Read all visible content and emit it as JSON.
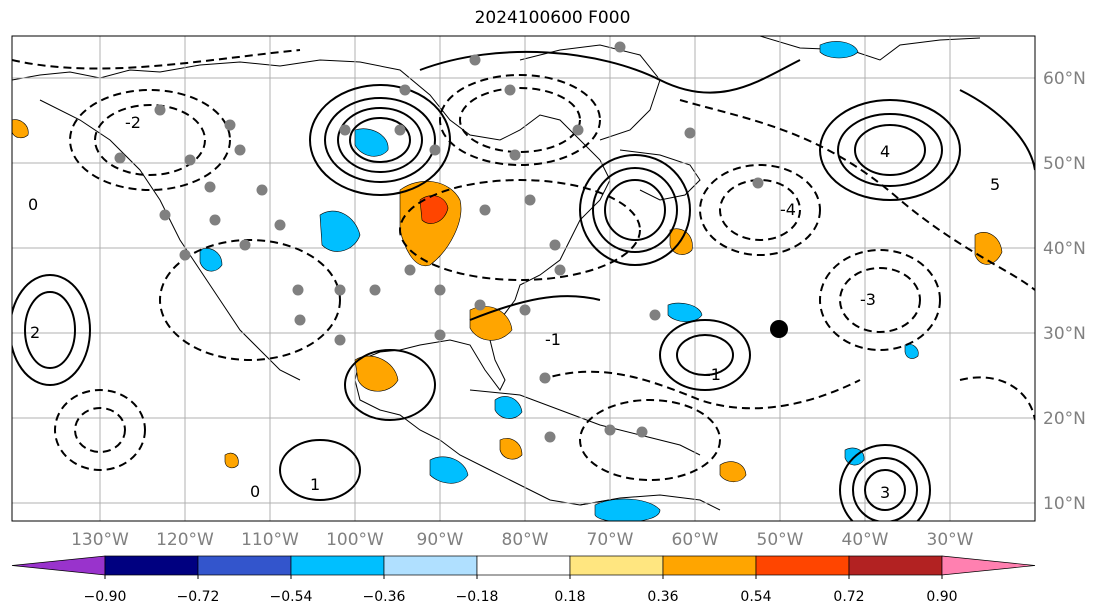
{
  "title": "2024100600 F000",
  "longitude_labels": [
    "130°W",
    "120°W",
    "110°W",
    "100°W",
    "90°W",
    "80°W",
    "70°W",
    "60°W",
    "50°W",
    "40°W",
    "30°W"
  ],
  "latitude_labels": [
    "60°N",
    "50°N",
    "40°N",
    "30°N",
    "20°N",
    "10°N"
  ],
  "colorbar": {
    "ticks": [
      "−0.90",
      "−0.72",
      "−0.54",
      "−0.36",
      "−0.18",
      "0.18",
      "0.36",
      "0.54",
      "0.72",
      "0.90"
    ],
    "colors": [
      "#9933cc",
      "#000080",
      "#3355cc",
      "#00bfff",
      "#b0e0ff",
      "#ffffff",
      "#ffe680",
      "#ffa500",
      "#ff4500",
      "#b22222",
      "#ff80b0"
    ]
  },
  "contour_labels": [
    "0",
    "1",
    "2",
    "3",
    "4",
    "5",
    "-1",
    "-2",
    "-3",
    "-4"
  ],
  "colors": {
    "land_outline": "#000000",
    "grid": "#b0b0b0",
    "point_marker": "#808080",
    "storm_marker": "#000000"
  }
}
